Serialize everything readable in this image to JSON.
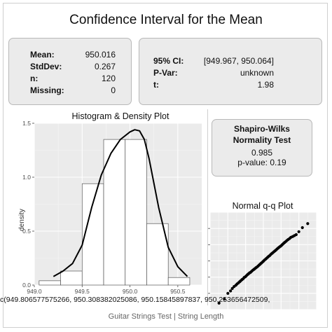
{
  "title": "Confidence Interval for the Mean",
  "stats": [
    {
      "label": "Mean:",
      "value": "950.016"
    },
    {
      "label": "StdDev:",
      "value": "0.267"
    },
    {
      "label": "n:",
      "value": "120"
    },
    {
      "label": "Missing:",
      "value": "0"
    }
  ],
  "ci": [
    {
      "label": "95% CI:",
      "value": "[949.967, 950.064]"
    },
    {
      "label": "P-Var:",
      "value": "unknown"
    },
    {
      "label": "t:",
      "value": "1.98"
    }
  ],
  "shapiro": {
    "title_line1": "Shapiro-Wilks",
    "title_line2": "Normality Test",
    "statistic": "0.985",
    "pvalue": "p-value: 0.19"
  },
  "overflow_text": "c(949.806577575266, 950.308382025086, 950.15845897837, 950.253656472509,",
  "caption": "Guitar Strings Test | String Length",
  "chart_data": [
    {
      "type": "bar",
      "title": "Histogram & Density Plot",
      "ylabel": "density",
      "xlabel": "",
      "xlim": [
        949.0,
        950.75
      ],
      "ylim": [
        0,
        1.5
      ],
      "xticks": [
        949.0,
        949.5,
        950.0,
        950.5
      ],
      "xtick_labels": [
        "949.0",
        "949.5",
        "950.0",
        "950.5"
      ],
      "yticks": [
        0.0,
        0.5,
        1.0,
        1.5
      ],
      "ytick_labels": [
        "0.0",
        "0.5",
        "1.0",
        "1.5"
      ],
      "grid": true,
      "bins": [
        {
          "x0": 949.05,
          "x1": 949.275,
          "density": 0.04
        },
        {
          "x0": 949.275,
          "x1": 949.5,
          "density": 0.13
        },
        {
          "x0": 949.5,
          "x1": 949.725,
          "density": 0.94
        },
        {
          "x0": 949.725,
          "x1": 949.95,
          "density": 1.35
        },
        {
          "x0": 949.95,
          "x1": 950.175,
          "density": 1.35
        },
        {
          "x0": 950.175,
          "x1": 950.4,
          "density": 0.57
        },
        {
          "x0": 950.4,
          "x1": 950.625,
          "density": 0.07
        }
      ],
      "density_curve": {
        "x": [
          949.2,
          949.3,
          949.4,
          949.5,
          949.6,
          949.7,
          949.8,
          949.9,
          950.0,
          950.05,
          950.1,
          950.15,
          950.2,
          950.3,
          950.4,
          950.5,
          950.6
        ],
        "y": [
          0.08,
          0.13,
          0.2,
          0.37,
          0.72,
          1.02,
          1.22,
          1.35,
          1.42,
          1.44,
          1.43,
          1.35,
          1.17,
          0.72,
          0.35,
          0.17,
          0.08
        ]
      }
    },
    {
      "type": "scatter",
      "title": "Normal q-q Plot",
      "grid": true,
      "x": [
        -2.5,
        -2.2,
        -2.0,
        -1.85,
        -1.75,
        -1.65,
        -1.55,
        -1.48,
        -1.4,
        -1.33,
        -1.27,
        -1.2,
        -1.14,
        -1.08,
        -1.02,
        -0.96,
        -0.9,
        -0.84,
        -0.78,
        -0.72,
        -0.66,
        -0.6,
        -0.54,
        -0.48,
        -0.42,
        -0.36,
        -0.3,
        -0.24,
        -0.18,
        -0.12,
        -0.06,
        0.0,
        0.06,
        0.12,
        0.18,
        0.24,
        0.3,
        0.36,
        0.42,
        0.48,
        0.54,
        0.6,
        0.66,
        0.72,
        0.78,
        0.84,
        0.9,
        0.96,
        1.02,
        1.08,
        1.14,
        1.2,
        1.27,
        1.33,
        1.4,
        1.48,
        1.55,
        1.65,
        1.75,
        1.85,
        2.0,
        2.2,
        2.5
      ],
      "y": [
        -2.6,
        -2.35,
        -2.0,
        -1.85,
        -1.7,
        -1.58,
        -1.5,
        -1.42,
        -1.35,
        -1.28,
        -1.22,
        -1.15,
        -1.1,
        -1.02,
        -0.98,
        -0.92,
        -0.85,
        -0.8,
        -0.74,
        -0.7,
        -0.64,
        -0.58,
        -0.53,
        -0.48,
        -0.42,
        -0.38,
        -0.32,
        -0.26,
        -0.2,
        -0.14,
        -0.08,
        -0.02,
        0.05,
        0.1,
        0.16,
        0.22,
        0.28,
        0.33,
        0.4,
        0.46,
        0.51,
        0.57,
        0.62,
        0.68,
        0.74,
        0.8,
        0.85,
        0.9,
        0.95,
        1.02,
        1.08,
        1.14,
        1.2,
        1.26,
        1.32,
        1.38,
        1.45,
        1.5,
        1.56,
        1.62,
        1.8,
        2.05,
        2.3
      ],
      "xlim": [
        -3,
        3
      ],
      "ylim": [
        -3,
        3
      ]
    }
  ]
}
